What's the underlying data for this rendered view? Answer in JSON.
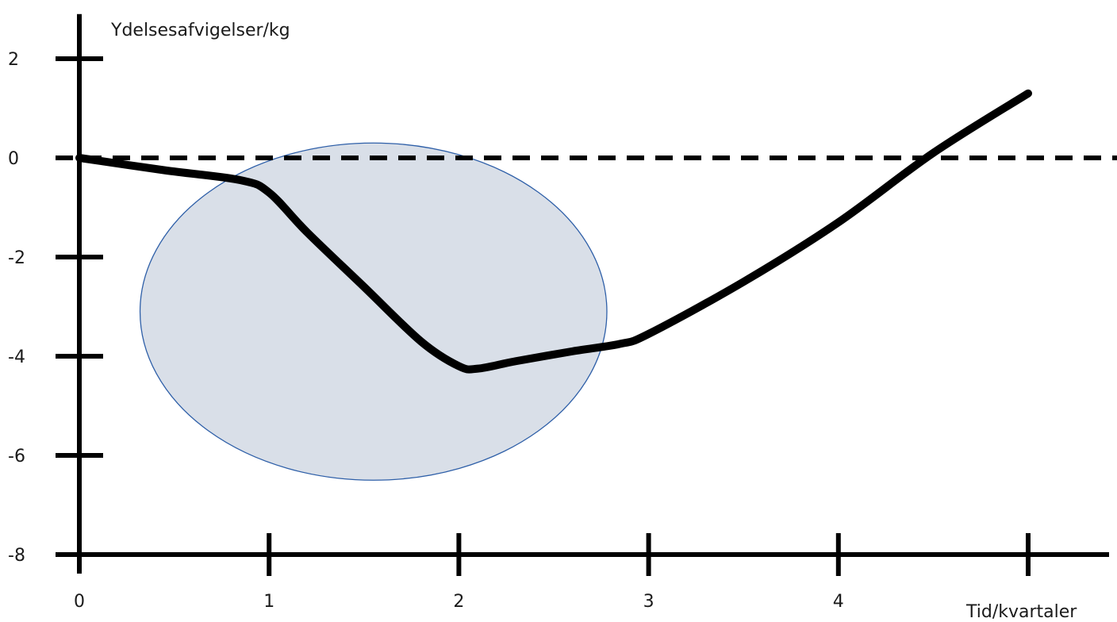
{
  "chart_data": {
    "type": "line",
    "title": "",
    "ylabel": "Ydelsesafvigelser/kg",
    "xlabel": "Tid/kvartaler",
    "xlim": [
      0,
      5.2
    ],
    "ylim": [
      -8,
      2.9
    ],
    "x_ticks": [
      0,
      1,
      2,
      3,
      4,
      5
    ],
    "x_tick_labels": [
      "0",
      "1",
      "2",
      "3",
      "4",
      ""
    ],
    "y_ticks": [
      2,
      0,
      -2,
      -4,
      -6,
      -8
    ],
    "y_tick_labels": [
      "2",
      "0",
      "-2",
      "-4",
      "-6",
      "-8"
    ],
    "reference_line": {
      "y": 0,
      "style": "dashed"
    },
    "series": [
      {
        "x": [
          0,
          0.45,
          0.85,
          1.0,
          1.2,
          1.5,
          1.8,
          2.0,
          2.1,
          2.3,
          2.6,
          2.85,
          3.0,
          3.5,
          4.0,
          4.5,
          5.0
        ],
        "y": [
          0,
          -0.25,
          -0.45,
          -0.7,
          -1.5,
          -2.6,
          -3.7,
          -4.2,
          -4.25,
          -4.1,
          -3.9,
          -3.75,
          -3.55,
          -2.5,
          -1.3,
          0.1,
          1.3
        ],
        "color": "#000000"
      }
    ],
    "highlight_ellipse": {
      "center": [
        1.55,
        -3.1
      ],
      "radius_x": 1.23,
      "radius_y": 3.4,
      "fill": "#d9dfe8",
      "stroke": "#2e5fa8"
    },
    "grid": false
  }
}
